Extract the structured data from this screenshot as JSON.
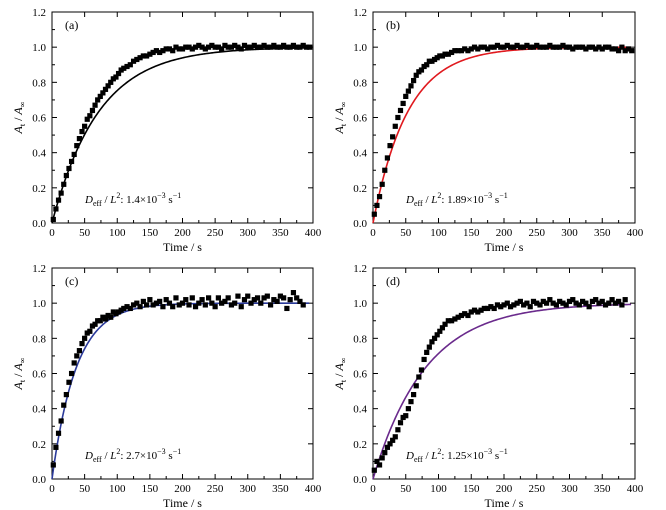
{
  "chart_data": [
    {
      "type": "scatter",
      "panel_label": "(a)",
      "xlabel": "Time / s",
      "ylabel": "A_t / A_∞",
      "ylabel_parts": {
        "main": "A",
        "sub1": "t",
        "sep": " / ",
        "main2": "A",
        "sub2": "∞"
      },
      "xlim": [
        0,
        400
      ],
      "ylim": [
        0,
        1.2
      ],
      "xticks": [
        0,
        50,
        100,
        150,
        200,
        250,
        300,
        350,
        400
      ],
      "yticks": [
        0.0,
        0.2,
        0.4,
        0.6,
        0.8,
        1.0,
        1.2
      ],
      "grid": false,
      "fit_color": "#000000",
      "fit_rate": 0.014,
      "annotation": {
        "prefix": "D",
        "sub": "eff",
        "mid": " / L",
        "sup": "2",
        "value": ": 1.4×10",
        "exp": "−3",
        "unit": " s",
        "unit_exp": "−1"
      },
      "series": [
        {
          "kind": "points",
          "x": [
            2,
            6,
            10,
            14,
            18,
            22,
            26,
            30,
            34,
            38,
            42,
            46,
            50,
            54,
            58,
            62,
            66,
            70,
            74,
            78,
            82,
            86,
            90,
            94,
            98,
            102,
            106,
            110,
            115,
            120,
            125,
            130,
            135,
            140,
            145,
            150,
            155,
            160,
            165,
            170,
            175,
            180,
            185,
            190,
            195,
            200,
            205,
            210,
            215,
            220,
            225,
            230,
            235,
            240,
            245,
            250,
            255,
            260,
            265,
            270,
            275,
            280,
            285,
            290,
            295,
            300,
            305,
            310,
            315,
            320,
            325,
            330,
            335,
            340,
            345,
            350,
            355,
            360,
            365,
            370,
            375,
            380,
            385,
            390,
            395
          ],
          "y": [
            0.02,
            0.08,
            0.13,
            0.17,
            0.22,
            0.27,
            0.31,
            0.35,
            0.39,
            0.44,
            0.48,
            0.52,
            0.55,
            0.59,
            0.61,
            0.64,
            0.67,
            0.7,
            0.72,
            0.74,
            0.76,
            0.78,
            0.8,
            0.82,
            0.83,
            0.85,
            0.87,
            0.88,
            0.89,
            0.9,
            0.92,
            0.93,
            0.94,
            0.95,
            0.95,
            0.96,
            0.97,
            0.98,
            0.97,
            0.98,
            0.99,
            0.99,
            0.98,
            1.0,
            0.99,
            0.99,
            1.0,
            1.0,
            0.99,
            1.0,
            1.01,
            1.0,
            0.99,
            1.0,
            1.01,
            1.0,
            1.0,
            0.99,
            1.01,
            1.0,
            1.0,
            1.01,
            1.0,
            0.99,
            1.01,
            1.0,
            1.0,
            1.01,
            1.0,
            1.0,
            1.01,
            1.0,
            1.0,
            1.01,
            1.0,
            1.0,
            1.01,
            1.0,
            1.0,
            1.01,
            1.0,
            1.0,
            1.01,
            1.0,
            1.0
          ]
        }
      ]
    },
    {
      "type": "scatter",
      "panel_label": "(b)",
      "xlabel": "Time / s",
      "ylabel": "A_t / A_∞",
      "ylabel_parts": {
        "main": "A",
        "sub1": "t",
        "sep": " / ",
        "main2": "A",
        "sub2": "∞"
      },
      "xlim": [
        0,
        400
      ],
      "ylim": [
        0,
        1.2
      ],
      "xticks": [
        0,
        50,
        100,
        150,
        200,
        250,
        300,
        350,
        400
      ],
      "yticks": [
        0.0,
        0.2,
        0.4,
        0.6,
        0.8,
        1.0,
        1.2
      ],
      "grid": false,
      "fit_color": "#e0191e",
      "fit_rate": 0.0189,
      "annotation": {
        "prefix": "D",
        "sub": "eff",
        "mid": " / L",
        "sup": "2",
        "value": ": 1.89×10",
        "exp": "−3",
        "unit": " s",
        "unit_exp": "−1"
      },
      "series": [
        {
          "kind": "points",
          "x": [
            2,
            6,
            10,
            14,
            18,
            22,
            26,
            30,
            34,
            38,
            42,
            46,
            50,
            54,
            58,
            62,
            66,
            70,
            74,
            78,
            82,
            86,
            90,
            94,
            98,
            102,
            106,
            110,
            115,
            120,
            125,
            130,
            135,
            140,
            145,
            150,
            155,
            160,
            165,
            170,
            175,
            180,
            185,
            190,
            195,
            200,
            205,
            210,
            215,
            220,
            225,
            230,
            235,
            240,
            245,
            250,
            255,
            260,
            265,
            270,
            275,
            280,
            285,
            290,
            295,
            300,
            305,
            310,
            315,
            320,
            325,
            330,
            335,
            340,
            345,
            350,
            355,
            360,
            365,
            370,
            375,
            380,
            385,
            390,
            395
          ],
          "y": [
            0.05,
            0.1,
            0.15,
            0.22,
            0.3,
            0.37,
            0.44,
            0.49,
            0.55,
            0.6,
            0.64,
            0.68,
            0.72,
            0.75,
            0.78,
            0.81,
            0.84,
            0.86,
            0.87,
            0.89,
            0.9,
            0.92,
            0.92,
            0.93,
            0.94,
            0.95,
            0.95,
            0.96,
            0.96,
            0.97,
            0.98,
            0.98,
            0.98,
            0.99,
            0.98,
            0.99,
            1.0,
            0.99,
            1.0,
            1.0,
            0.99,
            1.0,
            1.0,
            1.01,
            1.0,
            1.0,
            1.01,
            1.0,
            1.0,
            1.01,
            1.0,
            1.0,
            1.01,
            1.0,
            1.0,
            1.01,
            1.0,
            1.0,
            1.0,
            1.01,
            1.0,
            1.0,
            1.0,
            1.01,
            1.0,
            1.0,
            0.99,
            1.0,
            1.0,
            1.0,
            0.99,
            1.0,
            1.0,
            0.99,
            1.0,
            0.99,
            1.0,
            1.0,
            0.99,
            0.99,
            0.98,
            1.0,
            0.98,
            0.99,
            0.98
          ]
        }
      ]
    },
    {
      "type": "scatter",
      "panel_label": "(c)",
      "xlabel": "Time / s",
      "ylabel": "A_t / A_∞",
      "ylabel_parts": {
        "main": "A",
        "sub1": "t",
        "sep": " / ",
        "main2": "A",
        "sub2": "∞"
      },
      "xlim": [
        0,
        400
      ],
      "ylim": [
        0,
        1.2
      ],
      "xticks": [
        0,
        50,
        100,
        150,
        200,
        250,
        300,
        350,
        400
      ],
      "yticks": [
        0.0,
        0.2,
        0.4,
        0.6,
        0.8,
        1.0,
        1.2
      ],
      "grid": false,
      "fit_color": "#2b3a9a",
      "fit_rate": 0.027,
      "annotation": {
        "prefix": "D",
        "sub": "eff",
        "mid": " / L",
        "sup": "2",
        "value": ": 2.7×10",
        "exp": "−3",
        "unit": " s",
        "unit_exp": "−1"
      },
      "series": [
        {
          "kind": "points",
          "x": [
            2,
            6,
            10,
            14,
            18,
            22,
            26,
            30,
            34,
            38,
            42,
            46,
            50,
            54,
            58,
            62,
            66,
            70,
            74,
            78,
            82,
            86,
            90,
            94,
            98,
            102,
            106,
            110,
            115,
            120,
            125,
            130,
            135,
            140,
            145,
            150,
            155,
            160,
            165,
            170,
            175,
            180,
            185,
            190,
            195,
            200,
            205,
            210,
            215,
            220,
            225,
            230,
            235,
            240,
            245,
            250,
            255,
            260,
            265,
            270,
            275,
            280,
            285,
            290,
            295,
            300,
            305,
            310,
            315,
            320,
            325,
            330,
            335,
            340,
            345,
            350,
            355,
            360,
            365,
            370,
            375,
            380,
            385
          ],
          "y": [
            0.08,
            0.18,
            0.26,
            0.33,
            0.42,
            0.48,
            0.55,
            0.6,
            0.66,
            0.7,
            0.73,
            0.77,
            0.8,
            0.83,
            0.84,
            0.87,
            0.88,
            0.9,
            0.9,
            0.92,
            0.91,
            0.93,
            0.92,
            0.95,
            0.94,
            0.95,
            0.96,
            0.97,
            0.98,
            0.97,
            0.99,
            1.0,
            0.98,
            1.01,
            0.99,
            1.02,
            0.99,
            1.0,
            1.01,
            0.98,
            1.02,
            1.0,
            0.98,
            1.03,
            0.99,
            1.0,
            1.02,
            0.99,
            1.03,
            0.98,
            1.0,
            1.02,
            0.99,
            1.03,
            1.0,
            0.98,
            1.03,
            1.0,
            1.01,
            1.03,
            0.99,
            1.0,
            1.04,
            0.98,
            1.02,
            1.04,
            1.0,
            1.02,
            1.03,
            1.0,
            1.03,
            1.04,
            0.99,
            1.02,
            1.01,
            1.04,
            1.03,
            0.97,
            1.02,
            1.06,
            1.03,
            1.01,
            0.99
          ]
        }
      ]
    },
    {
      "type": "scatter",
      "panel_label": "(d)",
      "xlabel": "Time / s",
      "ylabel": "A_t / A_∞",
      "ylabel_parts": {
        "main": "A",
        "sub1": "t",
        "sep": " / ",
        "main2": "A",
        "sub2": "∞"
      },
      "xlim": [
        0,
        400
      ],
      "ylim": [
        0,
        1.2
      ],
      "xticks": [
        0,
        50,
        100,
        150,
        200,
        250,
        300,
        350,
        400
      ],
      "yticks": [
        0.0,
        0.2,
        0.4,
        0.6,
        0.8,
        1.0,
        1.2
      ],
      "grid": false,
      "fit_color": "#6a2a8c",
      "fit_rate": 0.0125,
      "annotation": {
        "prefix": "D",
        "sub": "eff",
        "mid": " / L",
        "sup": "2",
        "value": ": 1.25×10",
        "exp": "−3",
        "unit": " s",
        "unit_exp": "−1"
      },
      "series": [
        {
          "kind": "points",
          "x": [
            2,
            6,
            10,
            14,
            18,
            22,
            26,
            30,
            34,
            38,
            42,
            46,
            50,
            54,
            58,
            62,
            66,
            70,
            74,
            78,
            82,
            86,
            90,
            94,
            98,
            102,
            106,
            110,
            115,
            120,
            125,
            130,
            135,
            140,
            145,
            150,
            155,
            160,
            165,
            170,
            175,
            180,
            185,
            190,
            195,
            200,
            205,
            210,
            215,
            220,
            225,
            230,
            235,
            240,
            245,
            250,
            255,
            260,
            265,
            270,
            275,
            280,
            285,
            290,
            295,
            300,
            305,
            310,
            315,
            320,
            325,
            330,
            335,
            340,
            345,
            350,
            355,
            360,
            365,
            370,
            375,
            380,
            385
          ],
          "y": [
            0.05,
            0.1,
            0.08,
            0.12,
            0.15,
            0.18,
            0.2,
            0.22,
            0.24,
            0.28,
            0.32,
            0.35,
            0.36,
            0.4,
            0.44,
            0.48,
            0.53,
            0.58,
            0.62,
            0.68,
            0.72,
            0.75,
            0.78,
            0.8,
            0.82,
            0.84,
            0.86,
            0.88,
            0.9,
            0.9,
            0.91,
            0.92,
            0.93,
            0.94,
            0.93,
            0.95,
            0.96,
            0.95,
            0.96,
            0.97,
            0.97,
            0.98,
            0.97,
            0.99,
            0.98,
            0.99,
            1.0,
            0.98,
            0.99,
            1.0,
            1.01,
            0.99,
            1.0,
            0.98,
            1.01,
            1.0,
            0.99,
            1.01,
            1.0,
            1.02,
            1.0,
            0.99,
            1.01,
            1.0,
            0.99,
            1.01,
            1.02,
            1.0,
            0.99,
            1.01,
            1.0,
            0.98,
            1.01,
            1.02,
            1.0,
            1.01,
            0.99,
            1.0,
            1.02,
            1.0,
            1.01,
            0.99,
            1.02
          ]
        }
      ]
    }
  ]
}
